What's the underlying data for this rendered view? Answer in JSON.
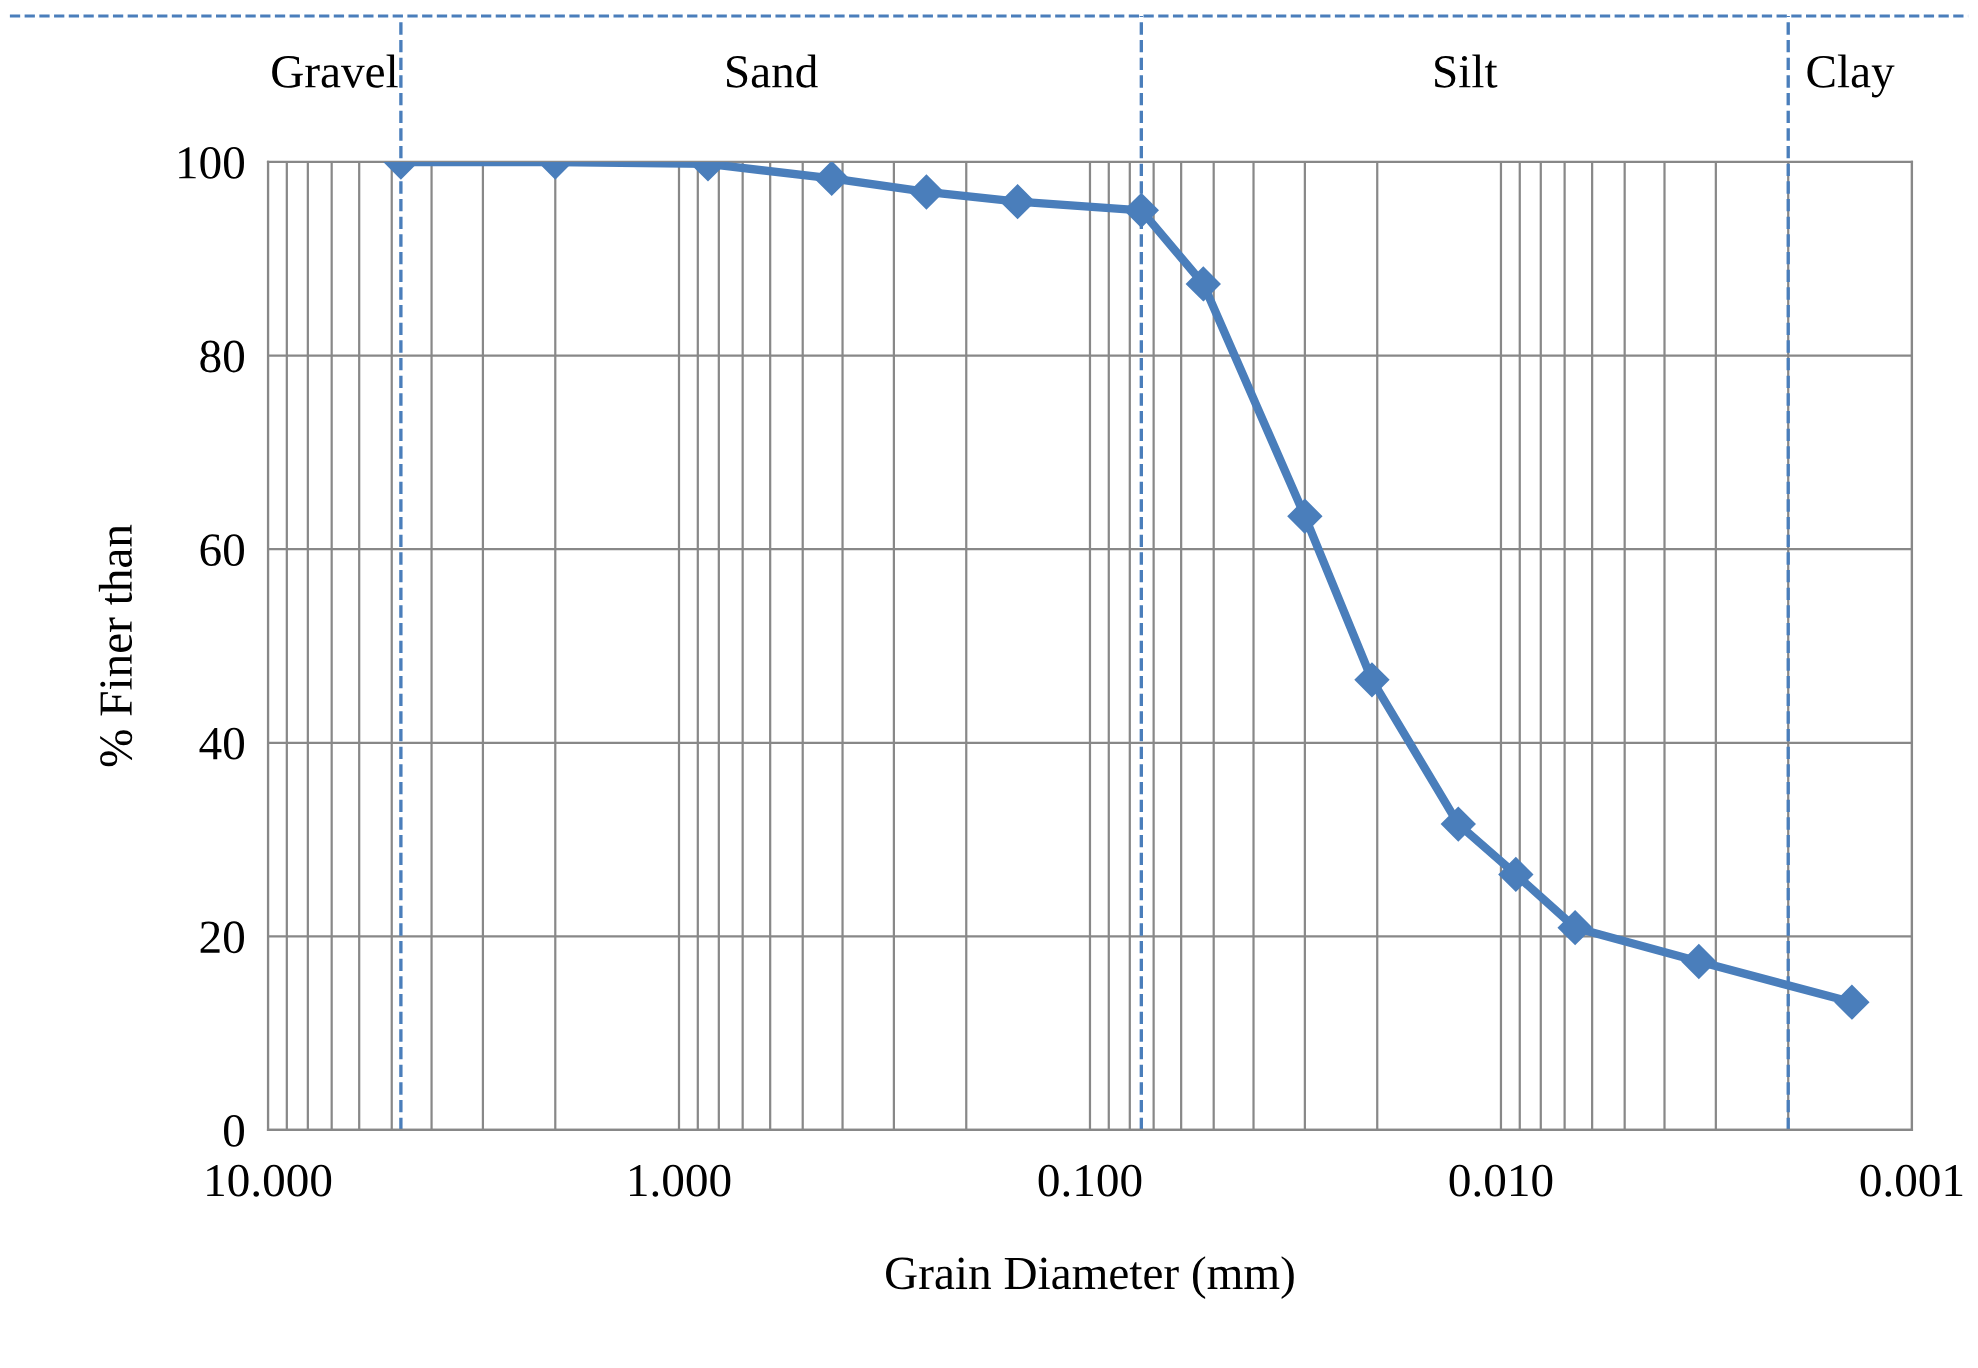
{
  "chart_data": {
    "type": "line",
    "xlabel": "Grain Diameter (mm)",
    "ylabel": "% Finer than",
    "log": "x",
    "x": [
      4.75,
      2.0,
      0.85,
      0.425,
      0.25,
      0.15,
      0.075,
      0.053,
      0.03,
      0.0206,
      0.0127,
      0.0092,
      0.0066,
      0.0033,
      0.0014
    ],
    "series": [
      {
        "color": "#4a7ebb",
        "values": [
          100,
          100,
          99.8,
          98.3,
          96.9,
          95.9,
          95.0,
          87.4,
          63.4,
          46.5,
          31.6,
          26.4,
          20.9,
          17.4,
          13.2
        ]
      }
    ],
    "xlim": [
      10,
      0.001
    ],
    "xticks": [
      {
        "value": 10,
        "label": "10.000"
      },
      {
        "value": 1,
        "label": "1.000"
      },
      {
        "value": 0.1,
        "label": "0.100"
      },
      {
        "value": 0.01,
        "label": "0.010"
      },
      {
        "value": 0.001,
        "label": "0.001"
      }
    ],
    "ylim": [
      0,
      100
    ],
    "yticks": [
      0,
      20,
      40,
      60,
      80,
      100
    ],
    "grid": true,
    "marker": "diamond",
    "line_style": "solid",
    "ref_lines": [
      {
        "axis": "x",
        "value": 4.75,
        "line_style": "dashed",
        "color": "#4a7ebb"
      },
      {
        "axis": "x",
        "value": 0.075,
        "line_style": "dashed",
        "color": "#4a7ebb"
      },
      {
        "axis": "x",
        "value": 0.002,
        "line_style": "dashed",
        "color": "#4a7ebb"
      }
    ],
    "annotations": [
      "Gravel",
      "Sand",
      "Silt",
      "Clay"
    ]
  }
}
